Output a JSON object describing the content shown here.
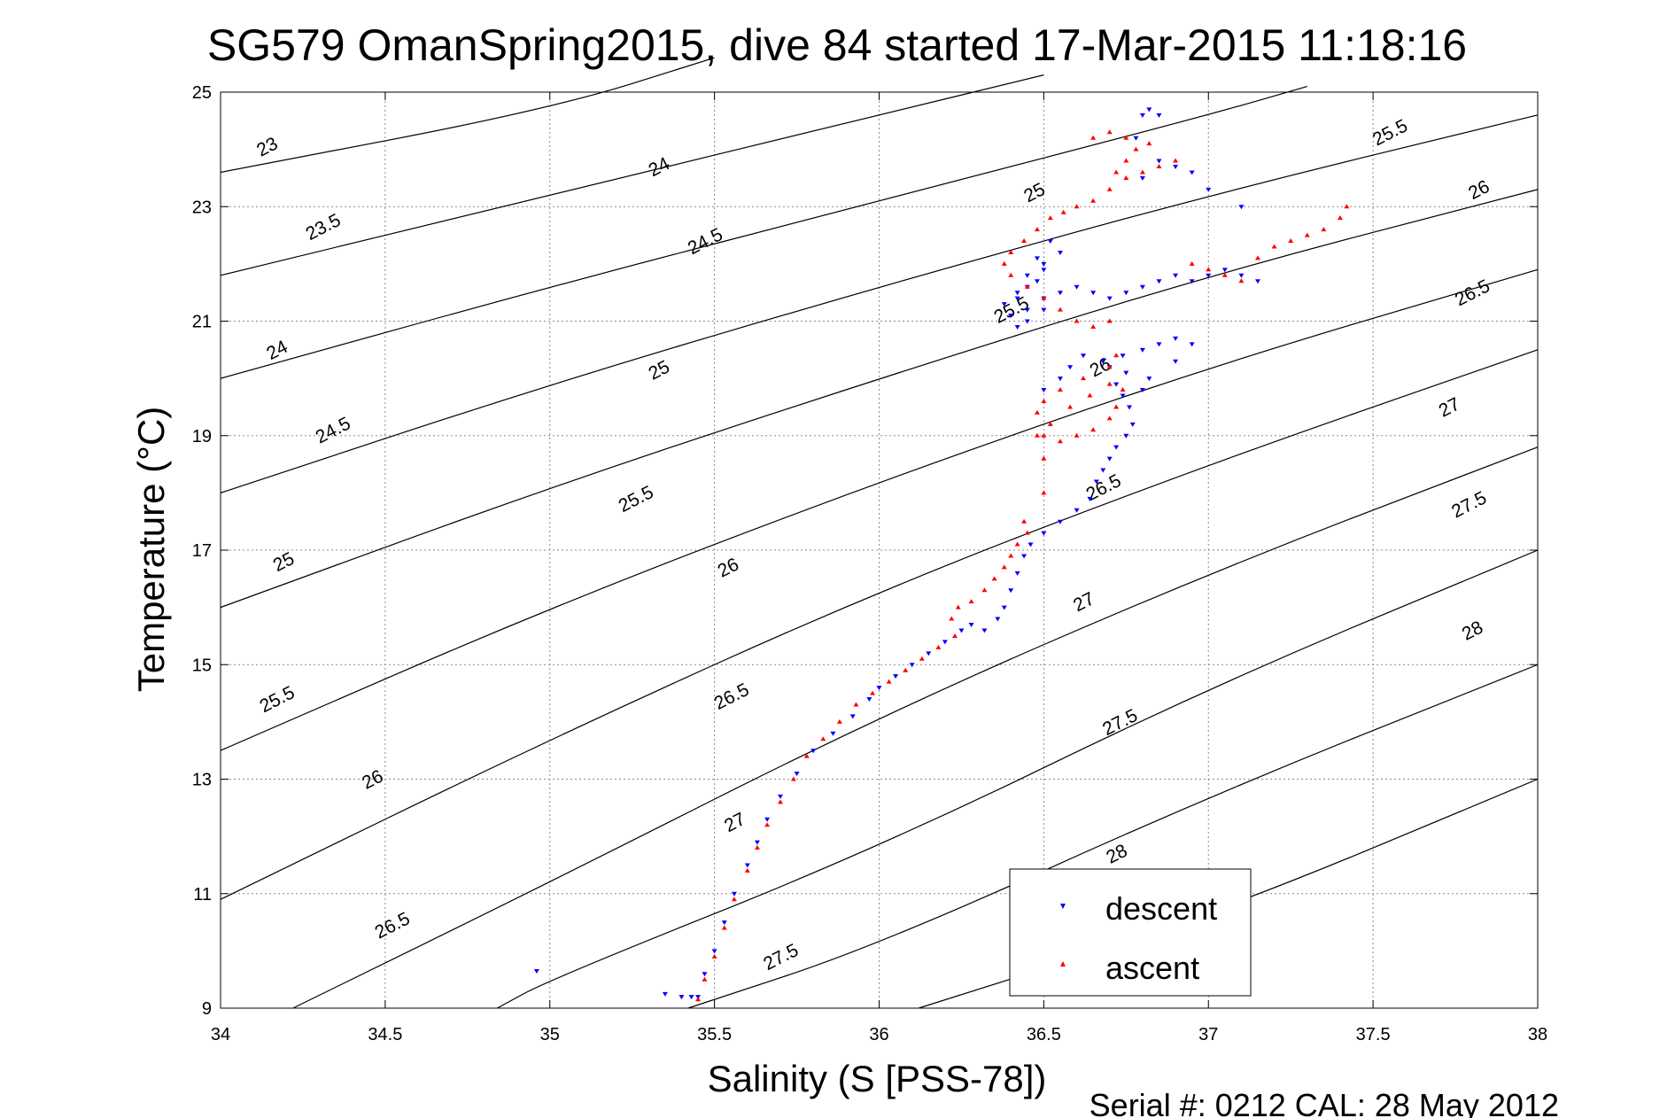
{
  "chart_data": {
    "type": "scatter",
    "title": "SG579 OmanSpring2015, dive 84 started 17-Mar-2015 11:18:16",
    "xlabel": "Salinity (S [PSS-78])",
    "ylabel": "Temperature (°C)",
    "xlim": [
      34,
      38
    ],
    "ylim": [
      9,
      25
    ],
    "xticks": [
      "34",
      "34.5",
      "35",
      "35.5",
      "36",
      "36.5",
      "37",
      "37.5",
      "38"
    ],
    "yticks": [
      "9",
      "11",
      "13",
      "15",
      "17",
      "19",
      "21",
      "23",
      "25"
    ],
    "grid": true,
    "legend_position": "bottom-right",
    "footnote": "Serial #: 0212  CAL: 28 May 2012",
    "contours": [
      {
        "level": "23",
        "pts": [
          [
            34,
            23.6
          ],
          [
            35,
            24.7
          ],
          [
            35.5,
            25.6
          ]
        ]
      },
      {
        "level": "23.5",
        "pts": [
          [
            34,
            21.8
          ],
          [
            35,
            23.2
          ],
          [
            36,
            24.6
          ],
          [
            36.5,
            25.3
          ]
        ]
      },
      {
        "level": "24",
        "pts": [
          [
            34,
            20.0
          ],
          [
            35,
            21.6
          ],
          [
            36,
            23.1
          ],
          [
            37,
            24.6
          ],
          [
            37.3,
            25.1
          ]
        ]
      },
      {
        "level": "24.5",
        "pts": [
          [
            34,
            18.0
          ],
          [
            35,
            19.9
          ],
          [
            36,
            21.6
          ],
          [
            37,
            23.2
          ],
          [
            38,
            24.6
          ]
        ]
      },
      {
        "level": "25",
        "pts": [
          [
            34,
            16.0
          ],
          [
            35,
            18.1
          ],
          [
            36,
            20.0
          ],
          [
            37,
            21.8
          ],
          [
            38,
            23.3
          ]
        ]
      },
      {
        "level": "25.5",
        "pts": [
          [
            34,
            13.5
          ],
          [
            35,
            16.0
          ],
          [
            36,
            18.2
          ],
          [
            37,
            20.2
          ],
          [
            38,
            21.9
          ]
        ]
      },
      {
        "level": "26",
        "pts": [
          [
            34,
            10.9
          ],
          [
            35,
            13.7
          ],
          [
            36,
            16.3
          ],
          [
            37,
            18.5
          ],
          [
            38,
            20.5
          ]
        ]
      },
      {
        "level": "26.5",
        "pts": [
          [
            34.22,
            9
          ],
          [
            35,
            11.2
          ],
          [
            36,
            14.1
          ],
          [
            37,
            16.6
          ],
          [
            38,
            18.8
          ]
        ]
      },
      {
        "level": "27",
        "pts": [
          [
            34.84,
            9
          ],
          [
            35,
            9.5
          ],
          [
            36,
            11.8
          ],
          [
            37,
            14.6
          ],
          [
            38,
            17.0
          ]
        ]
      },
      {
        "level": "27.5",
        "pts": [
          [
            35.42,
            9
          ],
          [
            36,
            10.1
          ],
          [
            37,
            12.7
          ],
          [
            38,
            15.0
          ]
        ]
      },
      {
        "level": "28",
        "pts": [
          [
            36.12,
            9
          ],
          [
            37,
            10.6
          ],
          [
            38,
            13.0
          ]
        ]
      }
    ],
    "contour_labels": [
      {
        "text": "23",
        "x": 34.15,
        "y": 23.95
      },
      {
        "text": "23.5",
        "x": 34.32,
        "y": 22.55
      },
      {
        "text": "24",
        "x": 34.18,
        "y": 20.4
      },
      {
        "text": "24.5",
        "x": 34.35,
        "y": 19.0
      },
      {
        "text": "25",
        "x": 34.2,
        "y": 16.7
      },
      {
        "text": "25.5",
        "x": 34.18,
        "y": 14.3
      },
      {
        "text": "26",
        "x": 34.47,
        "y": 12.9
      },
      {
        "text": "26.5",
        "x": 34.53,
        "y": 10.35
      },
      {
        "text": "24",
        "x": 35.34,
        "y": 23.6
      },
      {
        "text": "24.5",
        "x": 35.48,
        "y": 22.3
      },
      {
        "text": "25",
        "x": 35.34,
        "y": 20.05
      },
      {
        "text": "25.5",
        "x": 35.27,
        "y": 17.8
      },
      {
        "text": "26",
        "x": 35.55,
        "y": 16.6
      },
      {
        "text": "26.5",
        "x": 35.56,
        "y": 14.35
      },
      {
        "text": "27",
        "x": 35.57,
        "y": 12.15
      },
      {
        "text": "27.5",
        "x": 35.71,
        "y": 9.8
      },
      {
        "text": "25",
        "x": 36.48,
        "y": 23.15
      },
      {
        "text": "25.5",
        "x": 36.41,
        "y": 21.1
      },
      {
        "text": "26",
        "x": 36.68,
        "y": 20.1
      },
      {
        "text": "26.5",
        "x": 36.69,
        "y": 18.0
      },
      {
        "text": "27",
        "x": 36.63,
        "y": 16.0
      },
      {
        "text": "27.5",
        "x": 36.74,
        "y": 13.9
      },
      {
        "text": "28",
        "x": 36.73,
        "y": 11.6
      },
      {
        "text": "25.5",
        "x": 37.56,
        "y": 24.2
      },
      {
        "text": "26",
        "x": 37.83,
        "y": 23.2
      },
      {
        "text": "26.5",
        "x": 37.81,
        "y": 21.4
      },
      {
        "text": "27",
        "x": 37.74,
        "y": 19.4
      },
      {
        "text": "27.5",
        "x": 37.8,
        "y": 17.7
      },
      {
        "text": "28",
        "x": 37.81,
        "y": 15.5
      }
    ],
    "series": [
      {
        "name": "descent",
        "color": "#0000ff",
        "marker": "down-triangle",
        "x": [
          35.45,
          35.47,
          35.5,
          35.53,
          35.56,
          35.6,
          35.63,
          35.66,
          35.7,
          35.75,
          35.8,
          35.86,
          35.92,
          35.97,
          36.0,
          36.05,
          36.1,
          36.15,
          36.2,
          36.25,
          36.28,
          36.32,
          36.36,
          36.38,
          36.4,
          36.42,
          36.44,
          36.46,
          36.5,
          36.55,
          36.6,
          36.64,
          36.66,
          36.68,
          36.7,
          36.72,
          36.75,
          36.77,
          36.76,
          36.74,
          36.72,
          36.7,
          36.74,
          36.8,
          36.85,
          36.9,
          36.95,
          36.9,
          36.82,
          36.8,
          36.75,
          36.68,
          36.62,
          36.58,
          36.55,
          36.5,
          36.5,
          36.45,
          36.42,
          36.4,
          36.42,
          36.45,
          36.48,
          36.5,
          36.5,
          36.55,
          36.52,
          36.48,
          36.45,
          36.42,
          36.38,
          36.45,
          36.5,
          36.55,
          36.6,
          36.65,
          36.7,
          36.75,
          36.8,
          36.85,
          36.9,
          36.95,
          37.0,
          37.05,
          37.1,
          37.15,
          37.1,
          37.0,
          36.95,
          36.9,
          36.85,
          36.8,
          36.78,
          36.8,
          36.82,
          36.85,
          35.35,
          35.4,
          35.43,
          34.96
        ],
        "y": [
          9.2,
          9.6,
          10.0,
          10.5,
          11.0,
          11.5,
          11.9,
          12.3,
          12.7,
          13.1,
          13.5,
          13.8,
          14.1,
          14.4,
          14.6,
          14.8,
          15.0,
          15.2,
          15.4,
          15.6,
          15.7,
          15.6,
          15.8,
          16.0,
          16.3,
          16.6,
          16.9,
          17.1,
          17.3,
          17.5,
          17.7,
          17.9,
          18.2,
          18.4,
          18.6,
          18.8,
          19.0,
          19.2,
          19.5,
          19.7,
          19.9,
          20.2,
          20.4,
          20.5,
          20.6,
          20.7,
          20.6,
          20.3,
          20.0,
          19.8,
          20.1,
          20.3,
          20.4,
          20.2,
          20.0,
          19.8,
          21.2,
          21.0,
          20.9,
          21.1,
          21.4,
          21.6,
          21.7,
          21.9,
          22.0,
          22.2,
          22.4,
          22.1,
          21.8,
          21.5,
          21.3,
          21.2,
          21.4,
          21.5,
          21.6,
          21.5,
          21.4,
          21.5,
          21.6,
          21.7,
          21.8,
          21.7,
          21.8,
          21.9,
          21.8,
          21.7,
          23.0,
          23.3,
          23.6,
          23.7,
          23.8,
          23.5,
          24.2,
          24.6,
          24.7,
          24.6,
          9.25,
          9.2,
          9.2,
          9.65
        ]
      },
      {
        "name": "ascent",
        "color": "#ff0000",
        "marker": "up-triangle",
        "x": [
          35.45,
          35.47,
          35.5,
          35.53,
          35.56,
          35.6,
          35.63,
          35.66,
          35.7,
          35.74,
          35.78,
          35.83,
          35.88,
          35.93,
          35.98,
          36.03,
          36.08,
          36.13,
          36.18,
          36.23,
          36.22,
          36.24,
          36.28,
          36.32,
          36.35,
          36.38,
          36.4,
          36.42,
          36.45,
          36.44,
          36.5,
          36.5,
          36.48,
          36.52,
          36.58,
          36.64,
          36.7,
          36.74,
          36.72,
          36.7,
          36.65,
          36.6,
          36.55,
          36.5,
          36.48,
          36.5,
          36.55,
          36.62,
          36.7,
          36.72,
          36.7,
          36.65,
          36.6,
          36.55,
          36.5,
          36.45,
          36.4,
          36.38,
          36.4,
          36.44,
          36.48,
          36.52,
          36.56,
          36.6,
          36.65,
          36.7,
          36.75,
          36.8,
          36.85,
          36.9,
          36.95,
          37.0,
          37.05,
          37.1,
          37.15,
          37.2,
          37.25,
          37.3,
          37.35,
          37.4,
          37.42,
          36.72,
          36.75,
          36.78,
          36.82,
          36.75,
          36.7,
          36.65
        ],
        "y": [
          9.15,
          9.5,
          9.9,
          10.4,
          10.9,
          11.4,
          11.8,
          12.2,
          12.6,
          13.0,
          13.4,
          13.7,
          14.0,
          14.3,
          14.5,
          14.7,
          14.9,
          15.1,
          15.3,
          15.5,
          15.8,
          16.0,
          16.1,
          16.3,
          16.5,
          16.7,
          16.9,
          17.1,
          17.3,
          17.5,
          18.0,
          18.6,
          19.0,
          19.2,
          19.5,
          19.7,
          19.9,
          19.8,
          19.5,
          19.3,
          19.1,
          19.0,
          18.9,
          19.0,
          19.4,
          19.6,
          19.8,
          20.0,
          20.2,
          20.4,
          21.0,
          20.9,
          21.0,
          21.2,
          21.4,
          21.6,
          21.8,
          22.0,
          22.2,
          22.4,
          22.6,
          22.8,
          22.9,
          23.0,
          23.1,
          23.3,
          23.5,
          23.6,
          23.7,
          23.8,
          22.0,
          21.9,
          21.8,
          21.7,
          22.1,
          22.3,
          22.4,
          22.5,
          22.6,
          22.8,
          23.0,
          23.6,
          23.8,
          24.0,
          24.1,
          24.2,
          24.3,
          24.2
        ]
      }
    ]
  }
}
